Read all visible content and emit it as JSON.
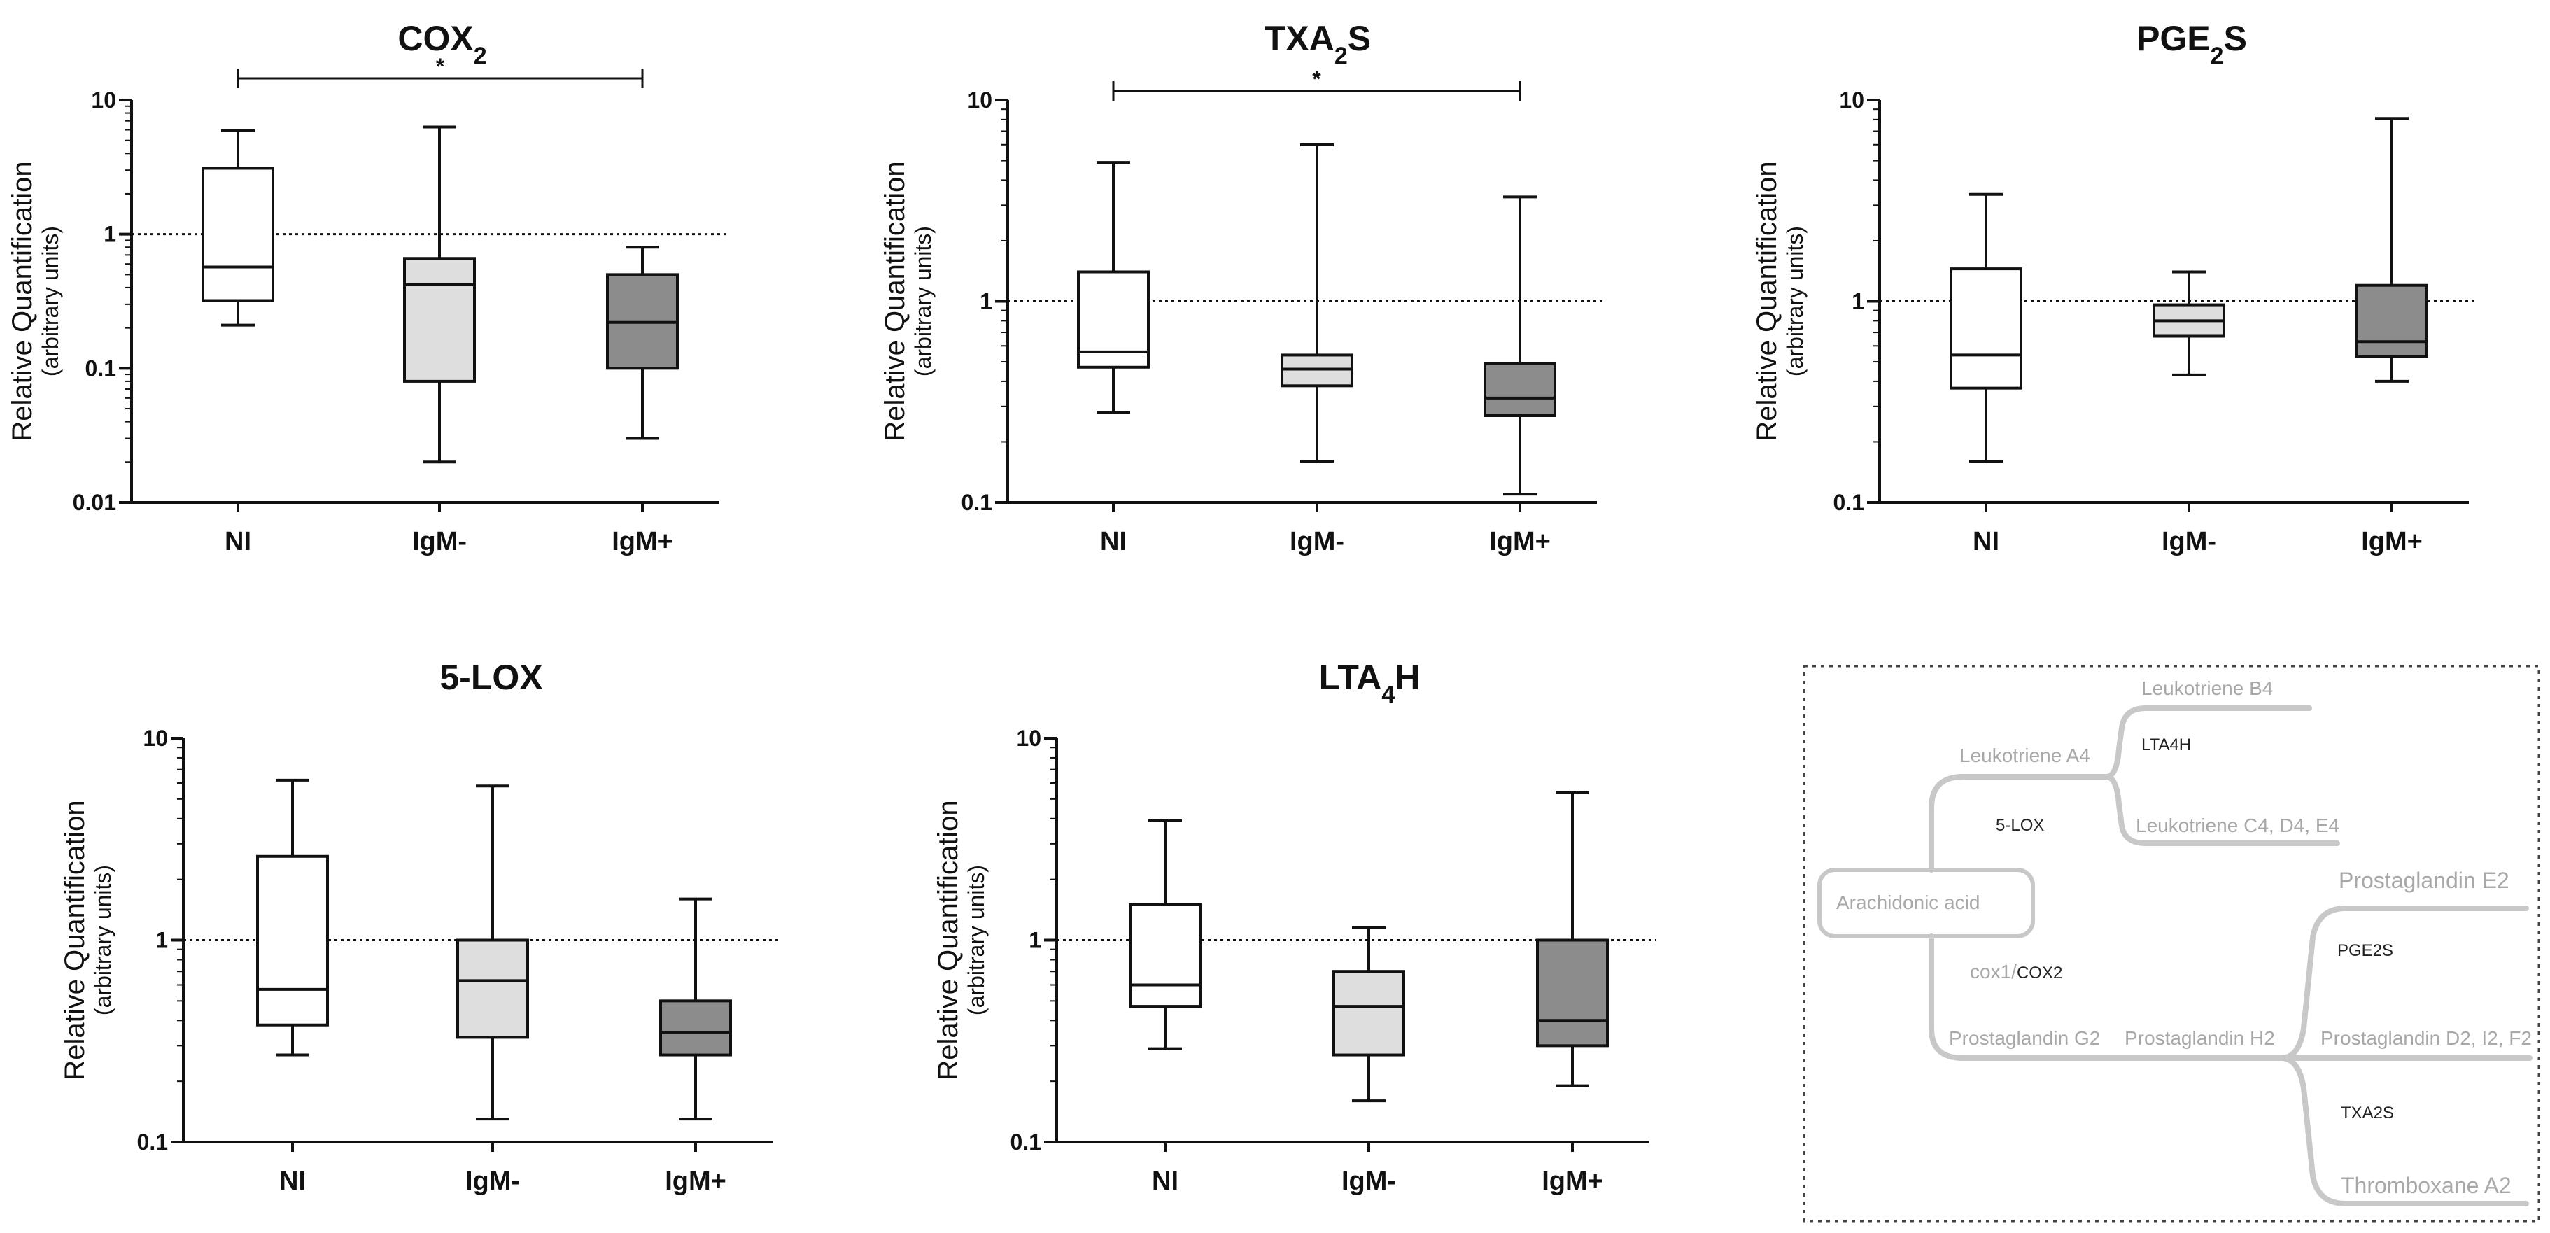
{
  "chart_data": [
    {
      "type": "boxplot",
      "title": "COX",
      "title_sub": "2",
      "title_after": "",
      "ylabel": "Relative Quantification",
      "ylabel2": "(arbitrary units)",
      "yscale": "log",
      "ylim": [
        0.01,
        10
      ],
      "yticks": [
        0.01,
        0.1,
        1,
        10
      ],
      "ytick_labels": [
        "0.01",
        "0.1",
        "1",
        "10"
      ],
      "reference_line": 1,
      "categories": [
        "NI",
        "IgM-",
        "IgM+"
      ],
      "fills": [
        "#ffffff",
        "#dedede",
        "#8c8c8c"
      ],
      "boxes": [
        {
          "min": 0.21,
          "q1": 0.32,
          "median": 0.57,
          "q3": 3.1,
          "max": 5.9
        },
        {
          "min": 0.02,
          "q1": 0.08,
          "median": 0.42,
          "q3": 0.66,
          "max": 6.3
        },
        {
          "min": 0.03,
          "q1": 0.1,
          "median": 0.22,
          "q3": 0.5,
          "max": 0.8
        }
      ],
      "significance": {
        "from": 0,
        "to": 2,
        "label": "*"
      }
    },
    {
      "type": "boxplot",
      "title": "TXA",
      "title_sub": "2",
      "title_after": "S",
      "ylabel": "Relative Quantification",
      "ylabel2": "(arbitrary units)",
      "yscale": "log",
      "ylim": [
        0.1,
        10
      ],
      "yticks": [
        0.1,
        1,
        10
      ],
      "ytick_labels": [
        "0.1",
        "1",
        "10"
      ],
      "reference_line": 1,
      "categories": [
        "NI",
        "IgM-",
        "IgM+"
      ],
      "fills": [
        "#ffffff",
        "#dedede",
        "#8c8c8c"
      ],
      "boxes": [
        {
          "min": 0.28,
          "q1": 0.47,
          "median": 0.56,
          "q3": 1.4,
          "max": 4.9
        },
        {
          "min": 0.16,
          "q1": 0.38,
          "median": 0.46,
          "q3": 0.54,
          "max": 6.0
        },
        {
          "min": 0.11,
          "q1": 0.27,
          "median": 0.33,
          "q3": 0.49,
          "max": 3.3
        }
      ],
      "significance": {
        "from": 0,
        "to": 2,
        "label": "*"
      }
    },
    {
      "type": "boxplot",
      "title": "PGE",
      "title_sub": "2",
      "title_after": "S",
      "ylabel": "Relative Quantification",
      "ylabel2": "(arbitrary units)",
      "yscale": "log",
      "ylim": [
        0.1,
        10
      ],
      "yticks": [
        0.1,
        1,
        10
      ],
      "ytick_labels": [
        "0.1",
        "1",
        "10"
      ],
      "reference_line": 1,
      "categories": [
        "NI",
        "IgM-",
        "IgM+"
      ],
      "fills": [
        "#ffffff",
        "#dedede",
        "#8c8c8c"
      ],
      "boxes": [
        {
          "min": 0.16,
          "q1": 0.37,
          "median": 0.54,
          "q3": 1.45,
          "max": 3.4
        },
        {
          "min": 0.43,
          "q1": 0.67,
          "median": 0.8,
          "q3": 0.96,
          "max": 1.4
        },
        {
          "min": 0.4,
          "q1": 0.53,
          "median": 0.63,
          "q3": 1.2,
          "max": 8.1
        }
      ],
      "significance": null
    },
    {
      "type": "boxplot",
      "title": "5-LOX",
      "title_sub": "",
      "title_after": "",
      "ylabel": "Relative Quantification",
      "ylabel2": "(arbitrary units)",
      "yscale": "log",
      "ylim": [
        0.1,
        10
      ],
      "yticks": [
        0.1,
        1,
        10
      ],
      "ytick_labels": [
        "0.1",
        "1",
        "10"
      ],
      "reference_line": 1,
      "categories": [
        "NI",
        "IgM-",
        "IgM+"
      ],
      "fills": [
        "#ffffff",
        "#dedede",
        "#8c8c8c"
      ],
      "boxes": [
        {
          "min": 0.27,
          "q1": 0.38,
          "median": 0.57,
          "q3": 2.6,
          "max": 6.2
        },
        {
          "min": 0.13,
          "q1": 0.33,
          "median": 0.63,
          "q3": 1.0,
          "max": 5.8
        },
        {
          "min": 0.13,
          "q1": 0.27,
          "median": 0.35,
          "q3": 0.5,
          "max": 1.6
        }
      ],
      "significance": null
    },
    {
      "type": "boxplot",
      "title": "LTA",
      "title_sub": "4",
      "title_after": "H",
      "ylabel": "Relative Quantification",
      "ylabel2": "(arbitrary units)",
      "yscale": "log",
      "ylim": [
        0.1,
        10
      ],
      "yticks": [
        0.1,
        1,
        10
      ],
      "ytick_labels": [
        "0.1",
        "1",
        "10"
      ],
      "reference_line": 1,
      "categories": [
        "NI",
        "IgM-",
        "IgM+"
      ],
      "fills": [
        "#ffffff",
        "#dedede",
        "#8c8c8c"
      ],
      "boxes": [
        {
          "min": 0.29,
          "q1": 0.47,
          "median": 0.6,
          "q3": 1.5,
          "max": 3.9
        },
        {
          "min": 0.16,
          "q1": 0.27,
          "median": 0.47,
          "q3": 0.7,
          "max": 1.15
        },
        {
          "min": 0.19,
          "q1": 0.3,
          "median": 0.4,
          "q3": 1.0,
          "max": 5.4
        }
      ],
      "significance": null
    }
  ],
  "pathway": {
    "arachidonic_acid": "Arachidonic acid",
    "leukotriene_a4": "Leukotriene A4",
    "leukotriene_b4": "Leukotriene B4",
    "leukotriene_cde4": "Leukotriene C4, D4, E4",
    "lta4h": "LTA4H",
    "five_lox": "5-LOX",
    "cox_prefix": "cox1/",
    "cox2": "COX2",
    "prostaglandin_g2": "Prostaglandin G2",
    "prostaglandin_h2": "Prostaglandin H2",
    "prostaglandin_e2": "Prostaglandin E2",
    "pge2s": "PGE2S",
    "prostaglandin_d2_i2_f2": "Prostaglandin D2, I2, F2",
    "txa2s": "TXA2S",
    "thromboxane_a2": "Thromboxane A2"
  }
}
